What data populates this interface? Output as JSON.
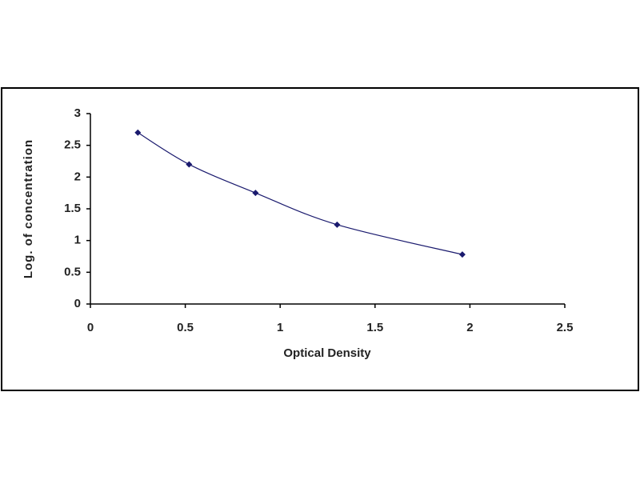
{
  "chart_data": {
    "type": "scatter",
    "x_label": "Optical Density",
    "y_label": "Log. of concentration",
    "x": [
      0.25,
      0.52,
      0.87,
      1.3,
      1.96
    ],
    "values": [
      2.7,
      2.2,
      1.75,
      1.25,
      0.78
    ],
    "color": "#1a1a6e",
    "trendline": true,
    "xlim": [
      0,
      2.5
    ],
    "xticks": [
      0,
      0.5,
      1,
      1.5,
      2,
      2.5
    ],
    "ylim": [
      0,
      3
    ],
    "yticks": [
      0,
      0.5,
      1,
      1.5,
      2,
      2.5,
      3
    ],
    "grid": false
  }
}
